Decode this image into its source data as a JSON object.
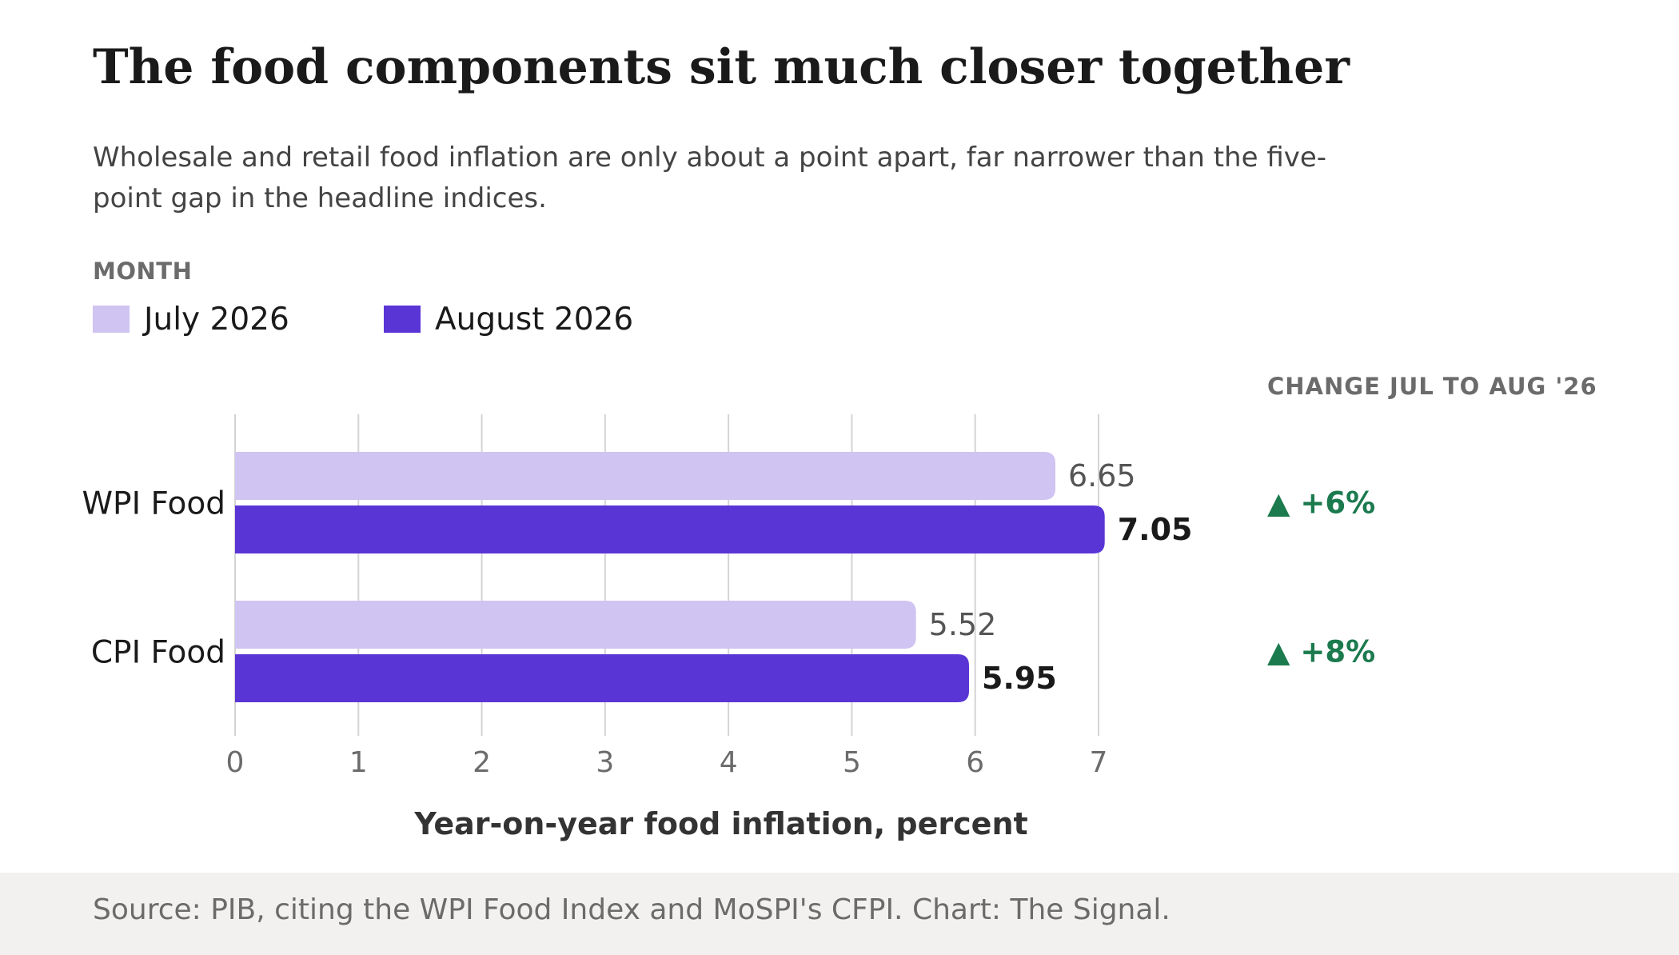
{
  "title": "The food components sit much closer together",
  "subtitle": "Wholesale and retail food inflation are only about a point apart, far narrower than the five-point gap in the headline indices.",
  "legend": {
    "title": "MONTH",
    "items": [
      {
        "label": "July 2026",
        "color": "#d0c4f2"
      },
      {
        "label": "August 2026",
        "color": "#5a35d6"
      }
    ]
  },
  "change_header": "CHANGE JUL TO AUG '26",
  "source": "Source: PIB, citing the WPI Food Index and MoSPI's CFPI. Chart: The Signal.",
  "chart_data": {
    "type": "bar",
    "orientation": "horizontal",
    "categories": [
      "WPI Food",
      "CPI Food"
    ],
    "series": [
      {
        "name": "July 2026",
        "values": [
          6.65,
          5.52
        ],
        "color": "#d0c4f2"
      },
      {
        "name": "August 2026",
        "values": [
          7.05,
          5.95
        ],
        "color": "#5a35d6"
      }
    ],
    "changes": [
      "▲ +6%",
      "▲ +8%"
    ],
    "change_color": "#1b7a4e",
    "xlabel": "Year-on-year food inflation, percent",
    "xlim": [
      0,
      7
    ],
    "xticks": [
      0,
      1,
      2,
      3,
      4,
      5,
      6,
      7
    ],
    "grid": true
  }
}
